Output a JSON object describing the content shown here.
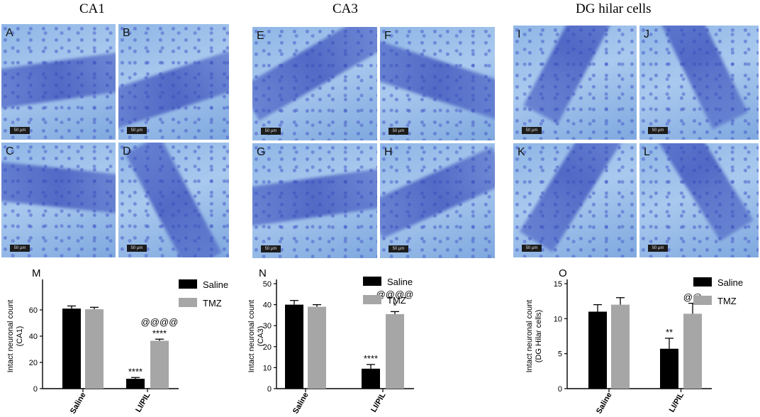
{
  "sections": [
    {
      "title": "CA1"
    },
    {
      "title": "CA3"
    },
    {
      "title": "DG hilar cells"
    }
  ],
  "micrographs": [
    {
      "letter": "A",
      "scale": "50 µm"
    },
    {
      "letter": "B",
      "scale": "50 µm"
    },
    {
      "letter": "C",
      "scale": "50 µm"
    },
    {
      "letter": "D",
      "scale": "50 µm"
    },
    {
      "letter": "E",
      "scale": "50 µm"
    },
    {
      "letter": "F",
      "scale": "50 µm"
    },
    {
      "letter": "G",
      "scale": "50 µm"
    },
    {
      "letter": "H",
      "scale": "50 µm"
    },
    {
      "letter": "I",
      "scale": "50 µm"
    },
    {
      "letter": "J",
      "scale": "50 µm"
    },
    {
      "letter": "K",
      "scale": "50 µm"
    },
    {
      "letter": "L",
      "scale": "50 µm"
    }
  ],
  "colors": {
    "saline": "#000000",
    "tmz": "#a6a6a6"
  },
  "chart_data": [
    {
      "type": "bar",
      "panel_letter": "M",
      "ylabel": "Intact neuronal count (CA1)",
      "categories": [
        "Saline",
        "LI/PIL"
      ],
      "ylim": [
        0,
        80
      ],
      "yticks": [
        0,
        20,
        40,
        60
      ],
      "legend_position": "top-right",
      "series": [
        {
          "name": "Saline",
          "values": [
            61,
            7.5
          ],
          "errors": [
            2,
            1
          ],
          "annotations": [
            "",
            "****"
          ]
        },
        {
          "name": "TMZ",
          "values": [
            60.5,
            36.5
          ],
          "errors": [
            1.5,
            1.2
          ],
          "annotations": [
            "",
            "@@@@\n****"
          ]
        }
      ]
    },
    {
      "type": "bar",
      "panel_letter": "N",
      "ylabel": "Intact neuronal count (CA3)",
      "categories": [
        "Saline",
        "LI/PIL"
      ],
      "ylim": [
        0,
        50
      ],
      "yticks": [
        0,
        10,
        20,
        30,
        40,
        50
      ],
      "legend_position": "top-right",
      "series": [
        {
          "name": "Saline",
          "values": [
            40,
            9.5
          ],
          "errors": [
            2,
            2
          ],
          "annotations": [
            "",
            "****"
          ]
        },
        {
          "name": "TMZ",
          "values": [
            39,
            35.5
          ],
          "errors": [
            1,
            1.2
          ],
          "annotations": [
            "",
            "@@@@\n*"
          ]
        }
      ]
    },
    {
      "type": "bar",
      "panel_letter": "O",
      "ylabel": "Intact neuronal count (DG Hilar cells)",
      "categories": [
        "Saline",
        "LI/PIL"
      ],
      "ylim": [
        0,
        15
      ],
      "yticks": [
        0,
        5,
        10,
        15
      ],
      "legend_position": "top-right",
      "series": [
        {
          "name": "Saline",
          "values": [
            11,
            5.7
          ],
          "errors": [
            1,
            1.5
          ],
          "annotations": [
            "",
            "**"
          ]
        },
        {
          "name": "TMZ",
          "values": [
            12,
            10.7
          ],
          "errors": [
            1,
            1.5
          ],
          "annotations": [
            "",
            "@@"
          ]
        }
      ]
    }
  ]
}
